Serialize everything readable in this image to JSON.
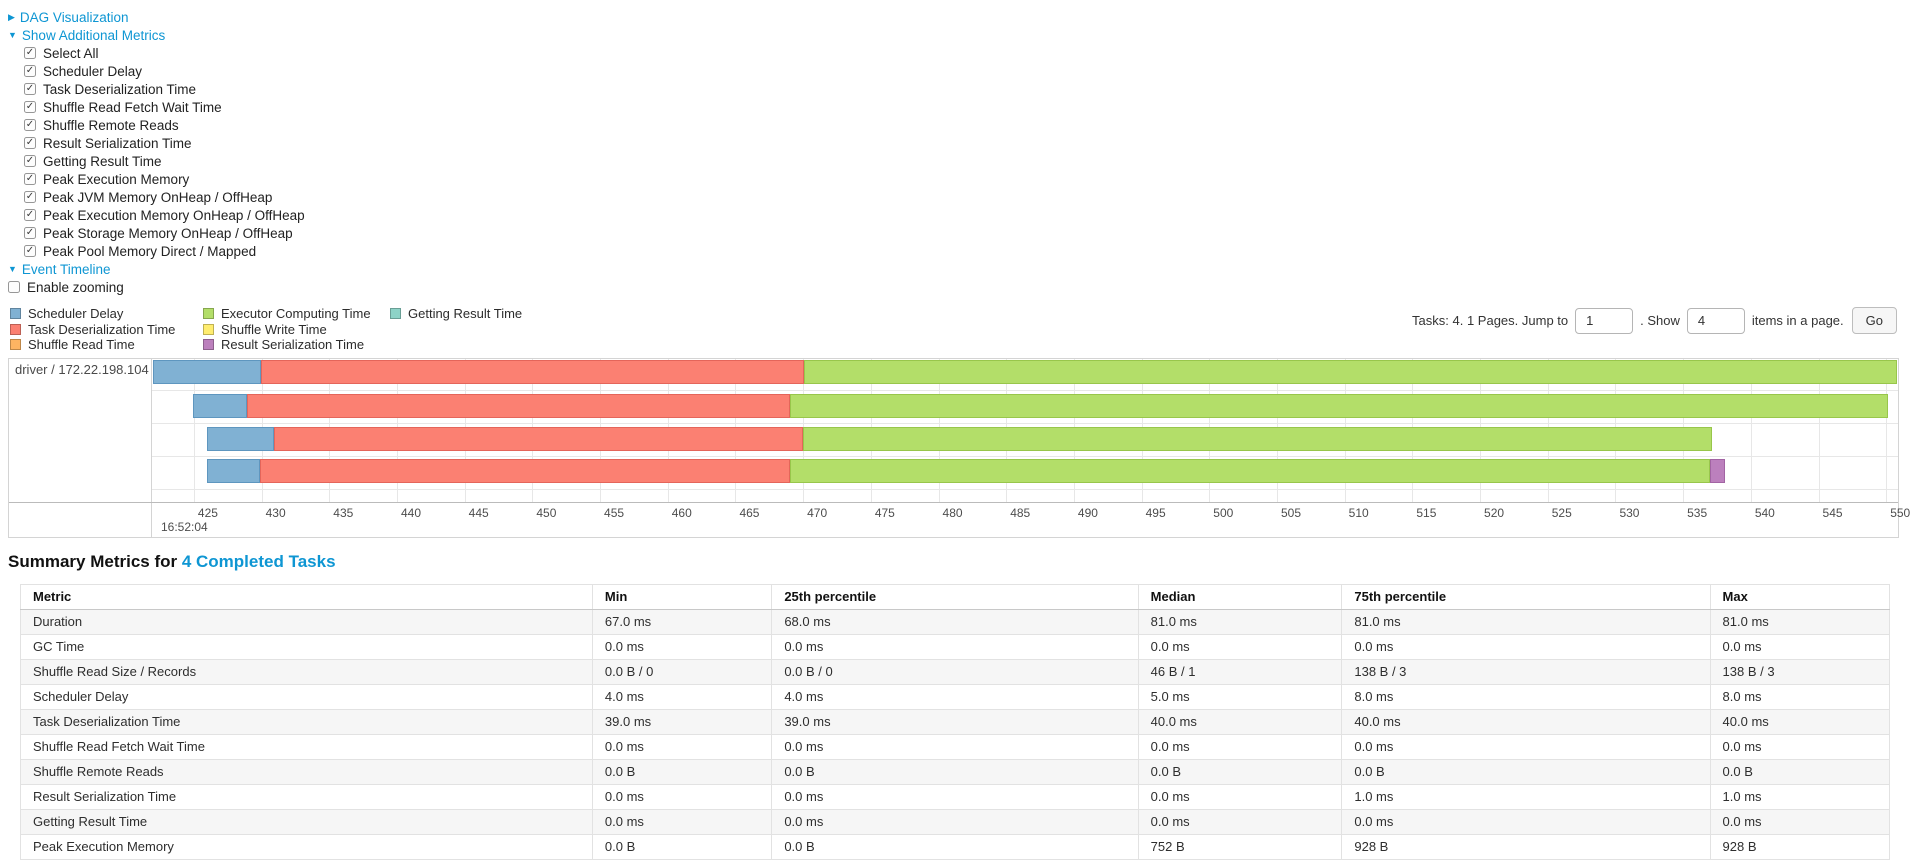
{
  "controls": {
    "dag": {
      "label": "DAG Visualization",
      "caret": "▶"
    },
    "metrics_toggle": {
      "label": "Show Additional Metrics",
      "caret": "▼"
    },
    "metric_checkboxes": [
      "Select All",
      "Scheduler Delay",
      "Task Deserialization Time",
      "Shuffle Read Fetch Wait Time",
      "Shuffle Remote Reads",
      "Result Serialization Time",
      "Getting Result Time",
      "Peak Execution Memory",
      "Peak JVM Memory OnHeap / OffHeap",
      "Peak Execution Memory OnHeap / OffHeap",
      "Peak Storage Memory OnHeap / OffHeap",
      "Peak Pool Memory Direct / Mapped"
    ],
    "event_timeline": {
      "label": "Event Timeline",
      "caret": "▼"
    },
    "enable_zooming": {
      "label": "Enable zooming",
      "checked": false
    }
  },
  "legend": {
    "columns": [
      [
        {
          "label": "Scheduler Delay",
          "color": "#80B1D3"
        },
        {
          "label": "Task Deserialization Time",
          "color": "#FB8072"
        },
        {
          "label": "Shuffle Read Time",
          "color": "#FDB462"
        }
      ],
      [
        {
          "label": "Executor Computing Time",
          "color": "#B3DE69"
        },
        {
          "label": "Shuffle Write Time",
          "color": "#FFED6F"
        },
        {
          "label": "Result Serialization Time",
          "color": "#BC80BD"
        }
      ],
      [
        {
          "label": "Getting Result Time",
          "color": "#8DD3C7"
        }
      ]
    ]
  },
  "pagination": {
    "prefix": "Tasks: 4. 1 Pages. Jump to",
    "jump_value": "1",
    "mid": ". Show",
    "show_value": "4",
    "suffix": "items in a page.",
    "go_label": "Go"
  },
  "chart_data": {
    "type": "timeline",
    "group_label": "driver / 172.22.198.104",
    "axis": {
      "major_label": "16:52:04",
      "tick_labels": [
        "425",
        "430",
        "435",
        "440",
        "445",
        "450",
        "455",
        "460",
        "465",
        "470",
        "475",
        "480",
        "485",
        "490",
        "495",
        "500",
        "505",
        "510",
        "515",
        "520",
        "525",
        "530",
        "535",
        "540",
        "545",
        "550"
      ],
      "first_tick_pct": 2.4,
      "step_pct": 3.877,
      "unit": "ms after 16:52:04"
    },
    "palette": {
      "scheduler-delay": {
        "fill": "#80B1D3",
        "border": "#5e96bf"
      },
      "task-deserialization": {
        "fill": "#FB8072",
        "border": "#e4655a"
      },
      "shuffle-read": {
        "fill": "#FDB462",
        "border": "#e09a43"
      },
      "executor-computing": {
        "fill": "#B3DE69",
        "border": "#98c64b"
      },
      "shuffle-write": {
        "fill": "#FFED6F",
        "border": "#e0cc4f"
      },
      "result-serialization": {
        "fill": "#BC80BD",
        "border": "#a264a3"
      },
      "getting-result": {
        "fill": "#8DD3C7",
        "border": "#6cb8aa"
      }
    },
    "tasks": [
      {
        "approx_ms": {
          "start": 422,
          "scheduler_delay": 8,
          "task_deserialization": 40,
          "executor_computing": 81
        },
        "segments": [
          {
            "name": "scheduler-delay",
            "left": 0.06,
            "width": 6.18
          },
          {
            "name": "task-deserialization",
            "left": 6.24,
            "width": 31.1
          },
          {
            "name": "executor-computing",
            "left": 37.34,
            "width": 62.6
          }
        ]
      },
      {
        "approx_ms": {
          "start": 425,
          "scheduler_delay": 4,
          "task_deserialization": 40,
          "executor_computing": 81
        },
        "segments": [
          {
            "name": "scheduler-delay",
            "left": 2.35,
            "width": 3.09
          },
          {
            "name": "task-deserialization",
            "left": 5.44,
            "width": 31.1
          },
          {
            "name": "executor-computing",
            "left": 36.54,
            "width": 62.89
          }
        ]
      },
      {
        "approx_ms": {
          "start": 426,
          "scheduler_delay": 5,
          "task_deserialization": 39,
          "executor_computing": 67
        },
        "segments": [
          {
            "name": "scheduler-delay",
            "left": 3.15,
            "width": 3.84
          },
          {
            "name": "task-deserialization",
            "left": 6.99,
            "width": 30.3
          },
          {
            "name": "executor-computing",
            "left": 37.29,
            "width": 52.06
          }
        ]
      },
      {
        "approx_ms": {
          "start": 426,
          "scheduler_delay": 4,
          "task_deserialization": 39,
          "executor_computing": 68,
          "result_serialization": 1
        },
        "segments": [
          {
            "name": "scheduler-delay",
            "left": 3.15,
            "width": 3.04
          },
          {
            "name": "task-deserialization",
            "left": 6.19,
            "width": 30.35
          },
          {
            "name": "executor-computing",
            "left": 36.54,
            "width": 52.69
          },
          {
            "name": "result-serialization",
            "left": 89.23,
            "width": 0.86
          }
        ]
      }
    ]
  },
  "summary": {
    "heading_prefix": "Summary Metrics for ",
    "heading_link": "4 Completed Tasks"
  },
  "summary_table": {
    "columns": [
      "Metric",
      "Min",
      "25th percentile",
      "Median",
      "75th percentile",
      "Max"
    ],
    "rows": [
      [
        "Duration",
        "67.0 ms",
        "68.0 ms",
        "81.0 ms",
        "81.0 ms",
        "81.0 ms"
      ],
      [
        "GC Time",
        "0.0 ms",
        "0.0 ms",
        "0.0 ms",
        "0.0 ms",
        "0.0 ms"
      ],
      [
        "Shuffle Read Size / Records",
        "0.0 B / 0",
        "0.0 B / 0",
        "46 B / 1",
        "138 B / 3",
        "138 B / 3"
      ],
      [
        "Scheduler Delay",
        "4.0 ms",
        "4.0 ms",
        "5.0 ms",
        "8.0 ms",
        "8.0 ms"
      ],
      [
        "Task Deserialization Time",
        "39.0 ms",
        "39.0 ms",
        "40.0 ms",
        "40.0 ms",
        "40.0 ms"
      ],
      [
        "Shuffle Read Fetch Wait Time",
        "0.0 ms",
        "0.0 ms",
        "0.0 ms",
        "0.0 ms",
        "0.0 ms"
      ],
      [
        "Shuffle Remote Reads",
        "0.0 B",
        "0.0 B",
        "0.0 B",
        "0.0 B",
        "0.0 B"
      ],
      [
        "Result Serialization Time",
        "0.0 ms",
        "0.0 ms",
        "0.0 ms",
        "1.0 ms",
        "1.0 ms"
      ],
      [
        "Getting Result Time",
        "0.0 ms",
        "0.0 ms",
        "0.0 ms",
        "0.0 ms",
        "0.0 ms"
      ],
      [
        "Peak Execution Memory",
        "0.0 B",
        "0.0 B",
        "752 B",
        "928 B",
        "928 B"
      ]
    ]
  }
}
